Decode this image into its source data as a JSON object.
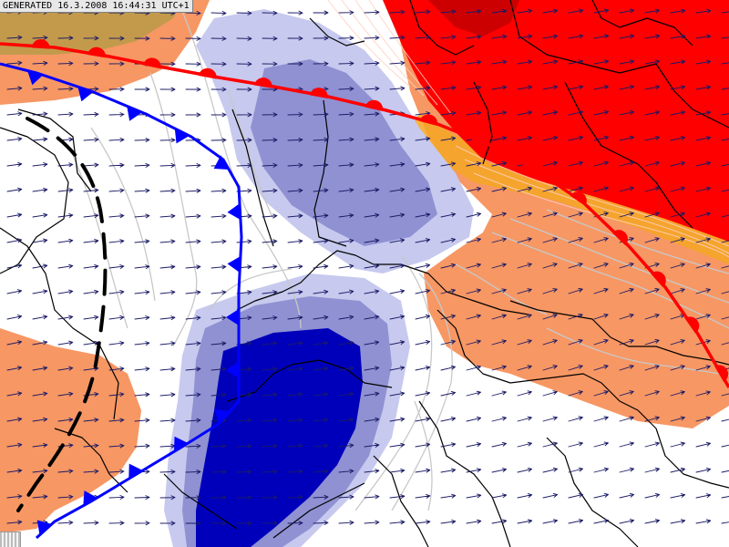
{
  "stamp": {
    "text": "GENERATED 16.3.2008 16:44:31 UTC+1"
  },
  "colors": {
    "cold_front": "#0000ff",
    "warm_front": "#ff0000",
    "warm_core": "#ff0000",
    "warm_dark": "#cc0000",
    "warm_mild": "#f79764",
    "warm_orange": "#f5a623",
    "cold_light": "#c7c9ee",
    "cold_mid": "#8f91d2",
    "cold_deep": "#0000bb",
    "tan": "#c39a4c",
    "border": "#000000",
    "isoline": "#c8c8c8",
    "wind": "#1a1a66"
  },
  "map_layers": [
    {
      "name": "cold-front",
      "icon": "cold-front-triangles"
    },
    {
      "name": "warm-front",
      "icon": "warm-front-semicircles"
    },
    {
      "name": "trough-line",
      "icon": "dashed-trough-line"
    },
    {
      "name": "wind-field",
      "icon": "wind-arrow"
    },
    {
      "name": "country-borders",
      "icon": "border-line"
    }
  ]
}
